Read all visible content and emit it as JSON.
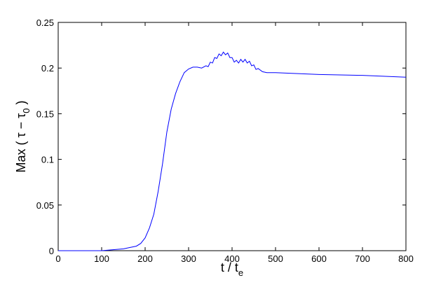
{
  "chart_data": {
    "type": "line",
    "xlabel": {
      "main": "t / t",
      "sub": "e"
    },
    "ylabel": {
      "main": "Max ( τ − τ",
      "sub": "0",
      "end": " )"
    },
    "x": [
      0,
      50,
      100,
      150,
      180,
      190,
      200,
      210,
      220,
      230,
      240,
      250,
      260,
      270,
      280,
      290,
      300,
      310,
      320,
      330,
      340,
      345,
      350,
      355,
      360,
      365,
      370,
      375,
      380,
      385,
      390,
      395,
      400,
      405,
      410,
      415,
      420,
      425,
      430,
      435,
      440,
      445,
      450,
      455,
      460,
      470,
      480,
      500,
      600,
      700,
      800
    ],
    "series": [
      {
        "color": "#0000ff",
        "values": [
          0,
          0,
          0,
          0.002,
          0.005,
          0.008,
          0.014,
          0.025,
          0.04,
          0.065,
          0.095,
          0.13,
          0.155,
          0.172,
          0.185,
          0.195,
          0.199,
          0.201,
          0.201,
          0.2,
          0.2025,
          0.2015,
          0.2065,
          0.2055,
          0.2115,
          0.2105,
          0.2155,
          0.2135,
          0.2175,
          0.2145,
          0.2165,
          0.2115,
          0.2115,
          0.2065,
          0.2085,
          0.2055,
          0.2095,
          0.2065,
          0.2095,
          0.2055,
          0.2075,
          0.2025,
          0.2035,
          0.1985,
          0.1995,
          0.196,
          0.195,
          0.195,
          0.193,
          0.192,
          0.19
        ]
      }
    ],
    "xlim": [
      0,
      800
    ],
    "xticks": [
      0,
      100,
      200,
      300,
      400,
      500,
      600,
      700,
      800
    ],
    "ylim": [
      0,
      0.25
    ],
    "yticks": [
      0,
      0.05,
      0.1,
      0.15,
      0.2,
      0.25
    ]
  }
}
